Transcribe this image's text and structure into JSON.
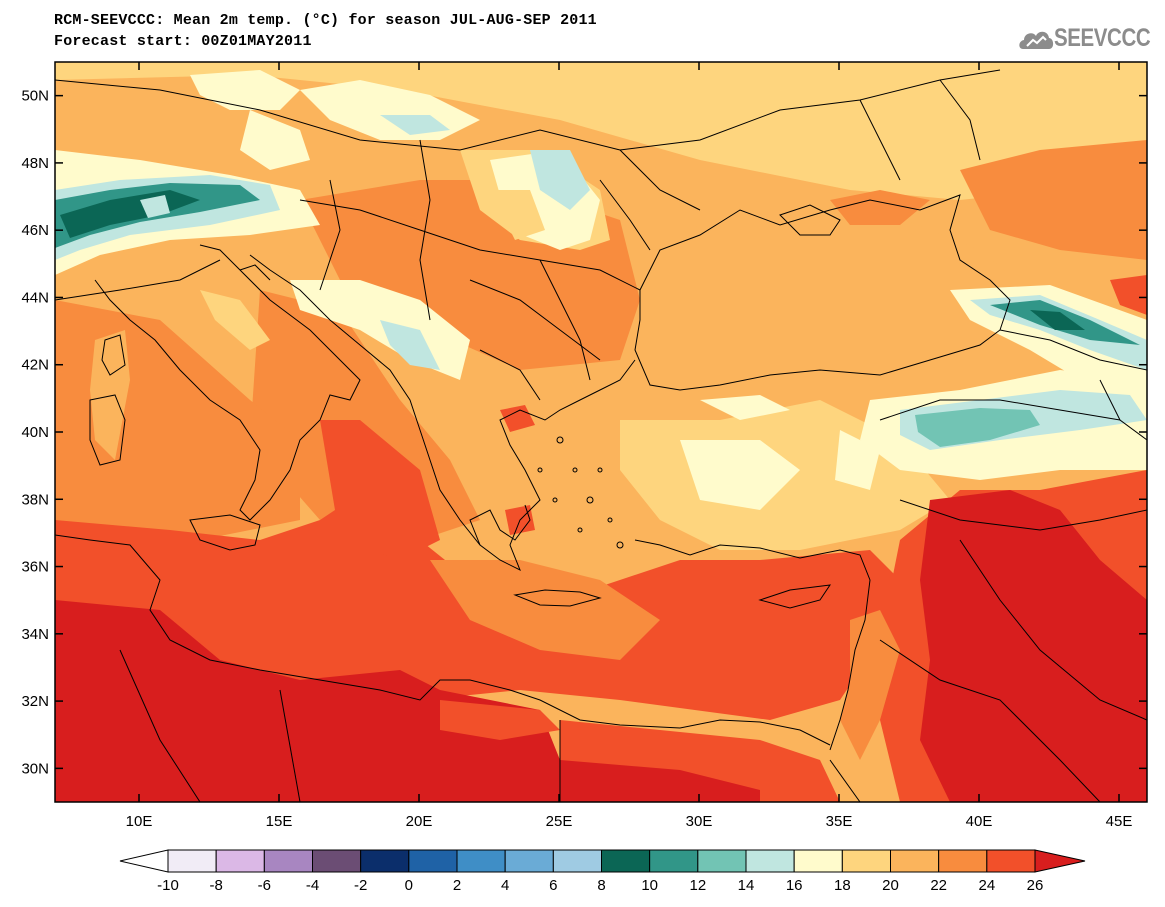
{
  "header": {
    "title_line1": "RCM-SEEVCCC: Mean 2m temp. (°C) for season JUL-AUG-SEP 2011",
    "title_line2": "Forecast start: 00Z01MAY2011",
    "logo_text": "SEEVCCC"
  },
  "map": {
    "lat_labels": [
      "50N",
      "48N",
      "46N",
      "44N",
      "42N",
      "40N",
      "38N",
      "36N",
      "34N",
      "32N",
      "30N"
    ],
    "lat_values": [
      50,
      48,
      46,
      44,
      42,
      40,
      38,
      36,
      34,
      32,
      30
    ],
    "lon_labels": [
      "10E",
      "15E",
      "20E",
      "25E",
      "30E",
      "35E",
      "40E",
      "45E"
    ],
    "lon_values": [
      10,
      15,
      20,
      25,
      30,
      35,
      40,
      45
    ],
    "lat_range": [
      29,
      51
    ],
    "lon_range": [
      7,
      46
    ]
  },
  "colorbar": {
    "labels": [
      "-10",
      "-8",
      "-6",
      "-4",
      "-2",
      "0",
      "2",
      "4",
      "6",
      "8",
      "10",
      "12",
      "14",
      "16",
      "18",
      "20",
      "22",
      "24",
      "26"
    ],
    "colors": [
      "#f1ecf6",
      "#dbb8e6",
      "#a886c1",
      "#6b4d74",
      "#0b2e6b",
      "#1f62a6",
      "#3f8ec6",
      "#6aabd6",
      "#9fcbe3",
      "#0b6655",
      "#319688",
      "#72c4b4",
      "#c0e6e0",
      "#fffbcc",
      "#fed57e",
      "#fbb45c",
      "#f88c3e",
      "#f2502a"
    ],
    "under_color": "#ffffff",
    "over_color": "#d81e1e"
  }
}
